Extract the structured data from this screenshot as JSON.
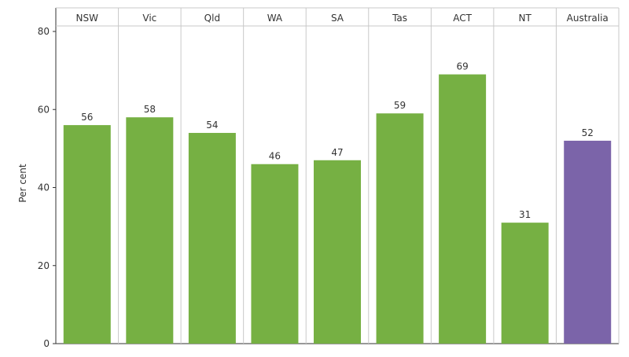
{
  "chart_data": {
    "type": "bar",
    "title": "",
    "xlabel": "",
    "ylabel": "Per cent",
    "categories": [
      "NSW",
      "Vic",
      "Qld",
      "WA",
      "SA",
      "Tas",
      "ACT",
      "NT",
      "Australia"
    ],
    "values": [
      56,
      58,
      54,
      46,
      47,
      59,
      69,
      31,
      52
    ],
    "data_labels": [
      "56",
      "58",
      "54",
      "46",
      "47",
      "59",
      "69",
      "31",
      "52"
    ],
    "y_ticks": [
      0,
      20,
      40,
      60,
      80
    ],
    "y_tick_labels": [
      "0",
      "20",
      "40",
      "60",
      "80"
    ],
    "ylim": [
      0,
      80
    ],
    "grid": false,
    "category_labels_position": "top",
    "colors": {
      "states": "#76b043",
      "national": "#7b64a9",
      "divider": "#c8c8c8",
      "axis": "#333333"
    },
    "highlight_category": "Australia"
  }
}
